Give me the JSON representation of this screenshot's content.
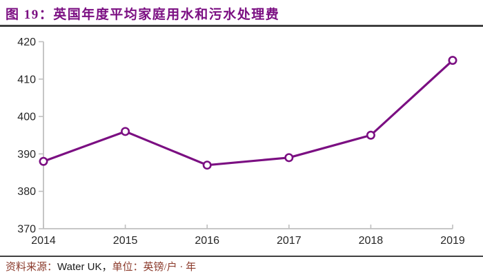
{
  "header": {
    "figure_label": "图 19：",
    "title": "英国年度平均家庭用水和污水处理费",
    "title_color": "#7b0f82"
  },
  "footer": {
    "source_label": "资料来源：",
    "source_value": "Water UK",
    "separator": "，",
    "unit_label": "单位：",
    "unit_value": "英镑/户 · 年",
    "label_color": "#8b3a2b"
  },
  "chart_data": {
    "type": "line",
    "title": "英国年度平均家庭用水和污水处理费",
    "categories": [
      "2014",
      "2015",
      "2016",
      "2017",
      "2018",
      "2019"
    ],
    "series": [
      {
        "name": "英国年度平均家庭用水和污水处理费",
        "values": [
          388,
          396,
          387,
          389,
          395,
          415
        ],
        "color": "#7b0f82",
        "marker": "open-circle"
      }
    ],
    "xlabel": "",
    "ylabel": "",
    "unit": "英镑/户·年",
    "ylim": [
      370,
      420
    ],
    "ytick_step": 10,
    "yticks": [
      370,
      380,
      390,
      400,
      410,
      420
    ],
    "grid": false,
    "legend_position": "none",
    "axis_color": "#bfbfbf",
    "tick_label_color": "#262626"
  }
}
